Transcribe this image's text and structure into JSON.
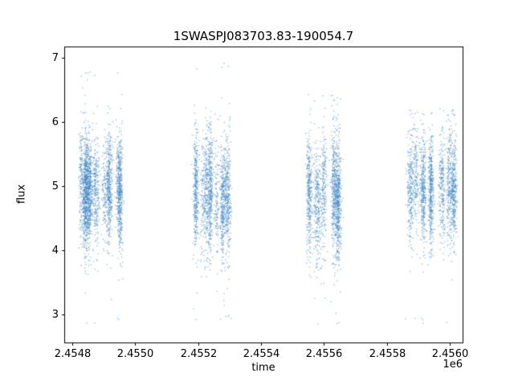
{
  "chart_data": {
    "type": "scatter",
    "title": "1SWASPJ083703.83-190054.7",
    "xlabel": "time",
    "ylabel": "flux",
    "x_offset_label": "1e6",
    "xlim": [
      2454775,
      2456040
    ],
    "ylim": [
      2.56,
      7.17
    ],
    "xticks": [
      2454800,
      2455000,
      2455200,
      2455400,
      2455600,
      2455800,
      2456000
    ],
    "xtick_labels": [
      "2.4548",
      "2.4550",
      "2.4552",
      "2.4554",
      "2.4556",
      "2.4558",
      "2.4560"
    ],
    "yticks": [
      3,
      4,
      5,
      6,
      7
    ],
    "ytick_labels": [
      "3",
      "4",
      "5",
      "6",
      "7"
    ],
    "grid": false,
    "legend": "none",
    "marker_color": "#3f87c5",
    "marker_alpha": 0.6,
    "clusters": [
      {
        "x_min": 2454810,
        "x_max": 2454960,
        "n_points": 2700,
        "n_nights": 16,
        "flux_mean": 4.95,
        "flux_std": 0.42,
        "flux_min": 2.85,
        "flux_max": 6.8,
        "outlier_frac": 0.02
      },
      {
        "x_min": 2455170,
        "x_max": 2455315,
        "n_points": 1900,
        "n_nights": 14,
        "flux_mean": 4.9,
        "flux_std": 0.45,
        "flux_min": 2.9,
        "flux_max": 6.92,
        "outlier_frac": 0.02
      },
      {
        "x_min": 2455550,
        "x_max": 2455650,
        "n_points": 1750,
        "n_nights": 12,
        "flux_mean": 4.85,
        "flux_std": 0.45,
        "flux_min": 2.78,
        "flux_max": 6.42,
        "outlier_frac": 0.02
      },
      {
        "x_min": 2455860,
        "x_max": 2456030,
        "n_points": 2100,
        "n_nights": 16,
        "flux_mean": 4.95,
        "flux_std": 0.42,
        "flux_min": 2.85,
        "flux_max": 6.2,
        "outlier_frac": 0.02
      }
    ]
  }
}
